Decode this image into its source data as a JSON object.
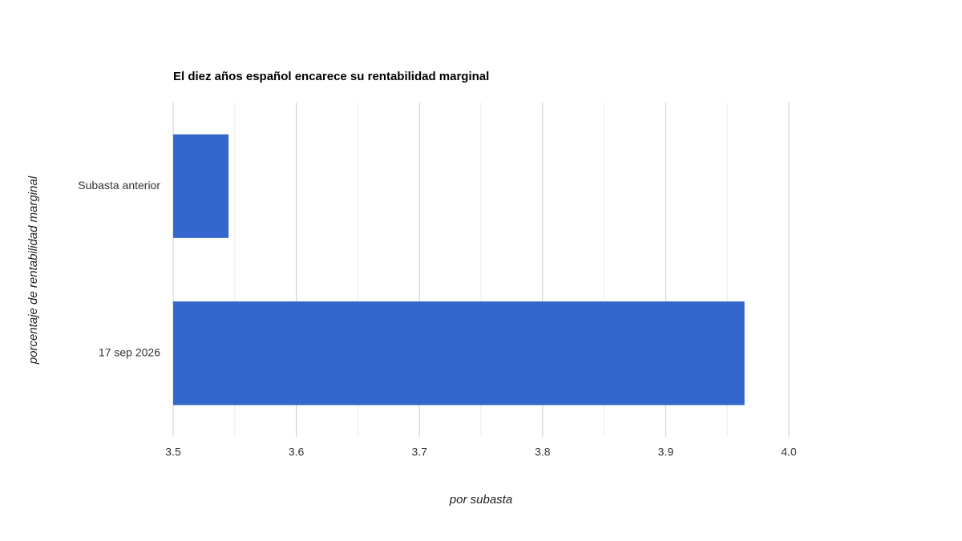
{
  "chart_data": {
    "type": "bar",
    "orientation": "horizontal",
    "title": "El diez años español encarece su rentabilidad marginal",
    "x_label": "por subasta",
    "y_label": "porcentaje de rentabilidad marginal",
    "categories": [
      "Subasta anterior",
      "17 sep 2026"
    ],
    "values": [
      3.545,
      3.964
    ],
    "color": "#3367cd",
    "xlim": [
      3.5,
      4.0
    ],
    "xticks": [
      3.5,
      3.6,
      3.7,
      3.8,
      3.9,
      {
        "value": 4,
        "label": "4.0"
      }
    ],
    "minor_xticks": [
      3.55,
      3.65,
      3.75,
      3.85,
      3.95
    ],
    "grid": true
  }
}
